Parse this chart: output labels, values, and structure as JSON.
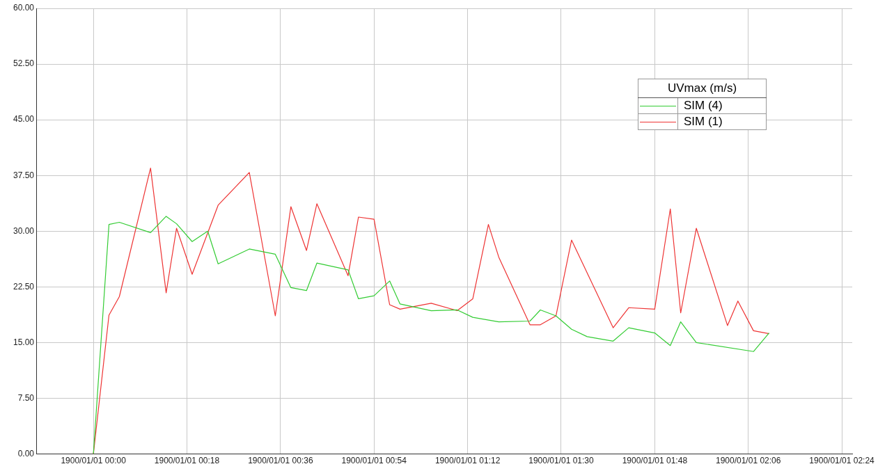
{
  "chart_data": {
    "type": "line",
    "legend_title": "UVmax (m/s)",
    "legend": "top right",
    "grid": true,
    "marker": "none",
    "line_style": "solid",
    "xlim": [
      "1899-12-31T23:49",
      "1900-01-01T02:26"
    ],
    "xticks": [
      {
        "value": "1900-01-01T00:00",
        "label": "1900/01/01 00:00"
      },
      {
        "value": "1900-01-01T00:18",
        "label": "1900/01/01 00:18"
      },
      {
        "value": "1900-01-01T00:36",
        "label": "1900/01/01 00:36"
      },
      {
        "value": "1900-01-01T00:54",
        "label": "1900/01/01 00:54"
      },
      {
        "value": "1900-01-01T01:12",
        "label": "1900/01/01 01:12"
      },
      {
        "value": "1900-01-01T01:30",
        "label": "1900/01/01 01:30"
      },
      {
        "value": "1900-01-01T01:48",
        "label": "1900/01/01 01:48"
      },
      {
        "value": "1900-01-01T02:06",
        "label": "1900/01/01 02:06"
      },
      {
        "value": "1900-01-01T02:24",
        "label": "1900/01/01 02:24"
      }
    ],
    "ylim": [
      0,
      60
    ],
    "yticks": [
      {
        "value": 0,
        "label": "0.00"
      },
      {
        "value": 7.5,
        "label": "7.50"
      },
      {
        "value": 15,
        "label": "15.00"
      },
      {
        "value": 22.5,
        "label": "22.50"
      },
      {
        "value": 30,
        "label": "30.00"
      },
      {
        "value": 37.5,
        "label": "37.50"
      },
      {
        "value": 45,
        "label": "45.00"
      },
      {
        "value": 52.5,
        "label": "52.50"
      },
      {
        "value": 60,
        "label": "60.00"
      }
    ],
    "series": [
      {
        "name": "SIM (4)",
        "color": "#33cc33",
        "x": [
          "1900-01-01T00:00",
          "1900-01-01T00:03",
          "1900-01-01T00:05",
          "1900-01-01T00:11",
          "1900-01-01T00:14",
          "1900-01-01T00:16",
          "1900-01-01T00:19",
          "1900-01-01T00:22",
          "1900-01-01T00:24",
          "1900-01-01T00:30",
          "1900-01-01T00:35",
          "1900-01-01T00:38",
          "1900-01-01T00:41",
          "1900-01-01T00:43",
          "1900-01-01T00:49",
          "1900-01-01T00:51",
          "1900-01-01T00:54",
          "1900-01-01T00:57",
          "1900-01-01T00:59",
          "1900-01-01T01:05",
          "1900-01-01T01:10",
          "1900-01-01T01:13",
          "1900-01-01T01:18",
          "1900-01-01T01:24",
          "1900-01-01T01:26",
          "1900-01-01T01:29",
          "1900-01-01T01:32",
          "1900-01-01T01:35",
          "1900-01-01T01:40",
          "1900-01-01T01:43",
          "1900-01-01T01:48",
          "1900-01-01T01:51",
          "1900-01-01T01:53",
          "1900-01-01T01:56",
          "1900-01-01T02:07",
          "1900-01-01T02:10"
        ],
        "values": [
          0,
          30.9,
          31.2,
          29.8,
          32.0,
          31.0,
          28.6,
          30.0,
          25.6,
          27.6,
          26.9,
          22.4,
          22.0,
          25.7,
          24.8,
          20.9,
          21.3,
          23.3,
          20.2,
          19.3,
          19.4,
          18.4,
          17.8,
          17.9,
          19.4,
          18.6,
          16.8,
          15.8,
          15.2,
          17.0,
          16.3,
          14.6,
          17.8,
          15.0,
          13.8,
          16.3
        ]
      },
      {
        "name": "SIM (1)",
        "color": "#ee3333",
        "x": [
          "1900-01-01T00:00",
          "1900-01-01T00:03",
          "1900-01-01T00:05",
          "1900-01-01T00:11",
          "1900-01-01T00:14",
          "1900-01-01T00:16",
          "1900-01-01T00:19",
          "1900-01-01T00:24",
          "1900-01-01T00:30",
          "1900-01-01T00:35",
          "1900-01-01T00:38",
          "1900-01-01T00:41",
          "1900-01-01T00:43",
          "1900-01-01T00:49",
          "1900-01-01T00:51",
          "1900-01-01T00:54",
          "1900-01-01T00:57",
          "1900-01-01T00:59",
          "1900-01-01T01:05",
          "1900-01-01T01:10",
          "1900-01-01T01:13",
          "1900-01-01T01:16",
          "1900-01-01T01:18",
          "1900-01-01T01:24",
          "1900-01-01T01:26",
          "1900-01-01T01:29",
          "1900-01-01T01:32",
          "1900-01-01T01:40",
          "1900-01-01T01:43",
          "1900-01-01T01:48",
          "1900-01-01T01:51",
          "1900-01-01T01:53",
          "1900-01-01T01:56",
          "1900-01-01T02:02",
          "1900-01-01T02:04",
          "1900-01-01T02:07",
          "1900-01-01T02:10"
        ],
        "values": [
          0,
          18.7,
          21.2,
          38.5,
          21.7,
          30.4,
          24.2,
          33.5,
          37.9,
          18.6,
          33.3,
          27.4,
          33.7,
          24.0,
          31.9,
          31.6,
          20.1,
          19.5,
          20.3,
          19.3,
          20.9,
          30.9,
          26.5,
          17.4,
          17.4,
          18.6,
          28.8,
          17.0,
          19.7,
          19.5,
          33.0,
          19.0,
          30.4,
          17.3,
          20.6,
          16.6,
          16.2
        ]
      }
    ]
  }
}
